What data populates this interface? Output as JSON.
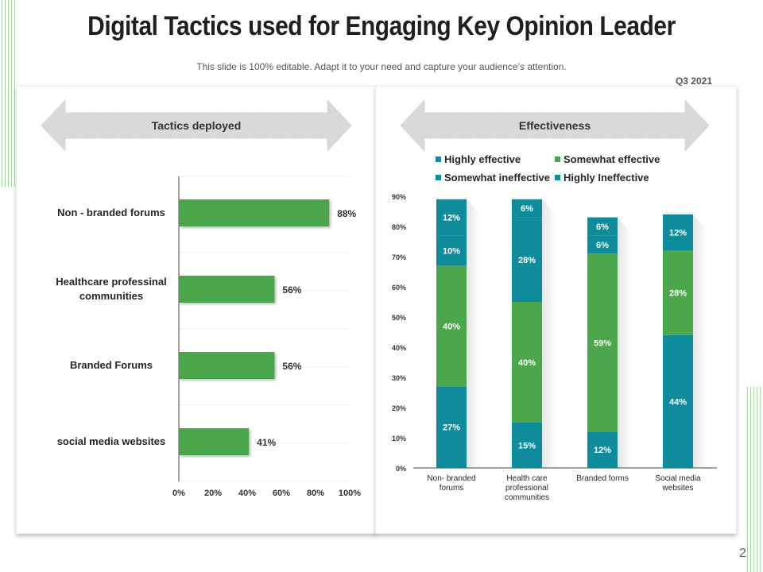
{
  "slide": {
    "title": "Digital Tactics used for Engaging Key Opinion Leader",
    "subtitle": "This slide is 100% editable. Adapt it to your need and capture your audience’s attention.",
    "period": "Q3 2021",
    "page_number": "2"
  },
  "colors": {
    "green": "#4ca64c",
    "teal": "#0f8c9b",
    "banner_gray": "#d9d9d9"
  },
  "left_panel": {
    "banner_label": "Tactics deployed"
  },
  "right_panel": {
    "banner_label": "Effectiveness"
  },
  "chart_data": [
    {
      "type": "bar",
      "orientation": "horizontal",
      "title": "Tactics deployed",
      "categories": [
        "Non - branded forums",
        "Healthcare professinal communities",
        "Branded Forums",
        "social media websites"
      ],
      "values": [
        88,
        56,
        56,
        41
      ],
      "data_labels": [
        "88%",
        "56%",
        "56%",
        "41%"
      ],
      "xlim": [
        0,
        100
      ],
      "x_ticks": [
        "0%",
        "20%",
        "40%",
        "60%",
        "80%",
        "100%"
      ],
      "xlabel": "",
      "ylabel": "",
      "grid": true,
      "legend": "none"
    },
    {
      "type": "bar",
      "stacked": true,
      "title": "Effectiveness",
      "categories": [
        "Non- branded forums",
        "Health care professional communities",
        "Branded forms",
        "Social media websites"
      ],
      "series": [
        {
          "name": "Highly effective",
          "color": "#0f8c9b",
          "values": [
            27,
            15,
            12,
            44
          ]
        },
        {
          "name": "Somewhat effective",
          "color": "#4ca64c",
          "values": [
            40,
            40,
            59,
            28
          ]
        },
        {
          "name": "Somewhat ineffective",
          "color": "#0f8c9b",
          "values": [
            10,
            28,
            6,
            12
          ]
        },
        {
          "name": "Highly Ineffective",
          "color": "#0f8c9b",
          "values": [
            12,
            6,
            6,
            0
          ]
        }
      ],
      "ylim": [
        0,
        90
      ],
      "y_ticks": [
        "0%",
        "10%",
        "20%",
        "30%",
        "40%",
        "50%",
        "60%",
        "70%",
        "80%",
        "90%"
      ],
      "xlabel": "",
      "ylabel": "",
      "grid": false,
      "legend": "top"
    }
  ]
}
